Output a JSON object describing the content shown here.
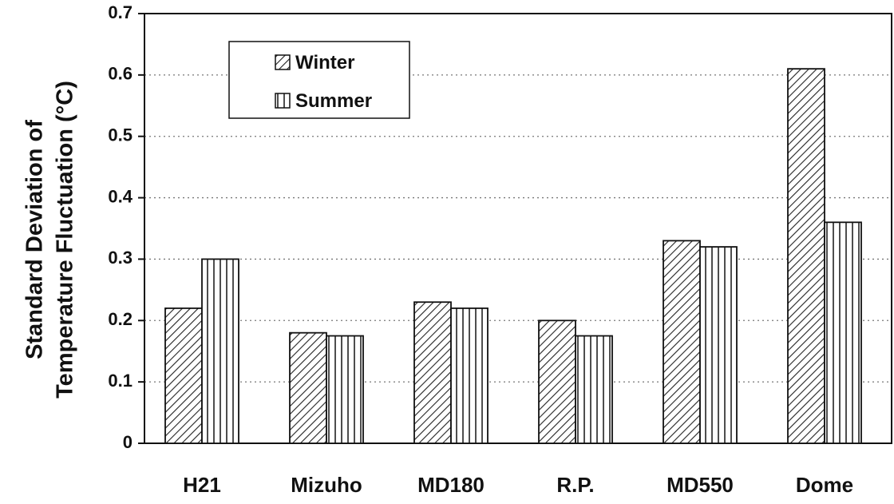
{
  "chart_data": {
    "type": "bar",
    "ylabel_lines": [
      "Standard Deviation of",
      "Temperature Fluctuation (°C)"
    ],
    "xlabel": "",
    "categories": [
      "H21",
      "Mizuho",
      "MD180",
      "R.P.",
      "MD550",
      "Dome"
    ],
    "series": [
      {
        "name": "Winter",
        "pattern": "diagonal-hatch",
        "values": [
          0.22,
          0.18,
          0.23,
          0.2,
          0.33,
          0.61
        ]
      },
      {
        "name": "Summer",
        "pattern": "vertical-hatch",
        "values": [
          0.3,
          0.175,
          0.22,
          0.175,
          0.32,
          0.36
        ]
      }
    ],
    "ylim": [
      0,
      0.7
    ],
    "yticks": [
      "0",
      "0.1",
      "0.2",
      "0.3",
      "0.4",
      "0.5",
      "0.6",
      "0.7"
    ],
    "grid": "horizontal-dotted",
    "legend_position": "top-left"
  }
}
